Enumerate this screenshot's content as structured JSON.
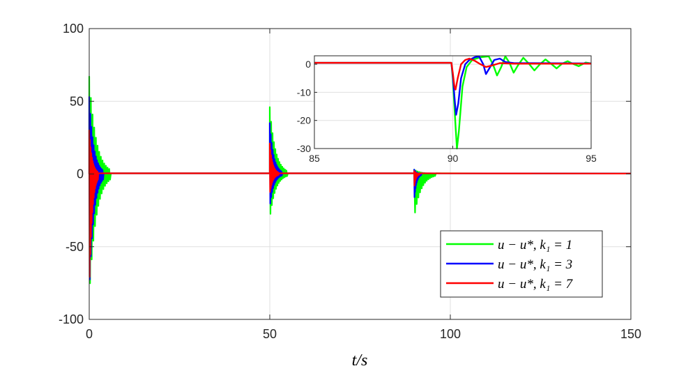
{
  "chart_data": {
    "type": "line",
    "xlabel": "t/s",
    "ylabel": "",
    "xlim": [
      0,
      150
    ],
    "ylim": [
      -100,
      100
    ],
    "xticks": [
      0,
      50,
      100,
      150
    ],
    "yticks": [
      -100,
      -50,
      0,
      50,
      100
    ],
    "grid": true,
    "legend_position": "bottom-right",
    "series": [
      {
        "name": "u − u*, k₁ = 1",
        "color": "#00ff00",
        "bursts": [
          {
            "start": 0,
            "min": -85,
            "max": 67,
            "duration": 6
          },
          {
            "start": 50,
            "min": -31,
            "max": 46,
            "duration": 5
          },
          {
            "start": 90,
            "min": -30,
            "max": 3,
            "duration": 6
          }
        ]
      },
      {
        "name": "u − u*, k₁ = 3",
        "color": "#0000ff",
        "bursts": [
          {
            "start": 0,
            "min": -82,
            "max": 53,
            "duration": 4
          },
          {
            "start": 50,
            "min": -23,
            "max": 35,
            "duration": 3.5
          },
          {
            "start": 90,
            "min": -18,
            "max": 3,
            "duration": 2
          }
        ]
      },
      {
        "name": "u − u*, k₁ = 7",
        "color": "#ff0000",
        "bursts": [
          {
            "start": 0,
            "min": -80,
            "max": 30,
            "duration": 2.5
          },
          {
            "start": 50,
            "min": -14,
            "max": 21,
            "duration": 2.5
          },
          {
            "start": 90,
            "min": -9,
            "max": 2,
            "duration": 1.5
          }
        ]
      }
    ],
    "inset": {
      "xlim": [
        85,
        95
      ],
      "ylim": [
        -30,
        3
      ],
      "xticks": [
        85,
        90,
        95
      ],
      "yticks": [
        -30,
        -20,
        -10,
        0
      ],
      "series": [
        {
          "name": "k1=1",
          "color": "#00ff00",
          "points": [
            [
              85,
              0.5
            ],
            [
              89.95,
              0.5
            ],
            [
              90.0,
              -5
            ],
            [
              90.1,
              -22
            ],
            [
              90.15,
              -30
            ],
            [
              90.22,
              -24
            ],
            [
              90.35,
              -8
            ],
            [
              90.5,
              -1
            ],
            [
              90.7,
              1.5
            ],
            [
              91.0,
              2.5
            ],
            [
              91.3,
              2.8
            ],
            [
              91.45,
              0
            ],
            [
              91.6,
              -4
            ],
            [
              91.75,
              -1
            ],
            [
              91.9,
              2.8
            ],
            [
              92.05,
              0.5
            ],
            [
              92.2,
              -3
            ],
            [
              92.35,
              -0.5
            ],
            [
              92.55,
              2.3
            ],
            [
              92.75,
              0.2
            ],
            [
              92.95,
              -2.2
            ],
            [
              93.15,
              0
            ],
            [
              93.35,
              1.7
            ],
            [
              93.55,
              0.2
            ],
            [
              93.75,
              -1.5
            ],
            [
              93.95,
              0.2
            ],
            [
              94.15,
              1.1
            ],
            [
              94.35,
              0.1
            ],
            [
              94.55,
              -0.7
            ],
            [
              94.8,
              0.6
            ],
            [
              95,
              0.3
            ]
          ]
        },
        {
          "name": "k1=3",
          "color": "#0000ff",
          "points": [
            [
              85,
              0.5
            ],
            [
              89.95,
              0.5
            ],
            [
              90.0,
              -4
            ],
            [
              90.08,
              -14
            ],
            [
              90.12,
              -18
            ],
            [
              90.2,
              -14
            ],
            [
              90.3,
              -5
            ],
            [
              90.45,
              0
            ],
            [
              90.6,
              1.5
            ],
            [
              90.8,
              2.5
            ],
            [
              90.95,
              2.8
            ],
            [
              91.1,
              0
            ],
            [
              91.2,
              -3.5
            ],
            [
              91.35,
              -1
            ],
            [
              91.5,
              1.5
            ],
            [
              91.7,
              2
            ],
            [
              91.9,
              0.8
            ],
            [
              92.2,
              0.4
            ],
            [
              95,
              0.3
            ]
          ]
        },
        {
          "name": "k1=7",
          "color": "#ff0000",
          "points": [
            [
              85,
              0.5
            ],
            [
              89.95,
              0.5
            ],
            [
              90.0,
              -3
            ],
            [
              90.06,
              -8
            ],
            [
              90.1,
              -9
            ],
            [
              90.18,
              -5
            ],
            [
              90.3,
              0
            ],
            [
              90.45,
              1.5
            ],
            [
              90.6,
              2
            ],
            [
              90.8,
              1.2
            ],
            [
              91.0,
              0
            ],
            [
              91.2,
              -1
            ],
            [
              91.4,
              -0.5
            ],
            [
              91.7,
              0.4
            ],
            [
              92.2,
              0.2
            ],
            [
              95,
              0.2
            ]
          ]
        }
      ]
    }
  }
}
